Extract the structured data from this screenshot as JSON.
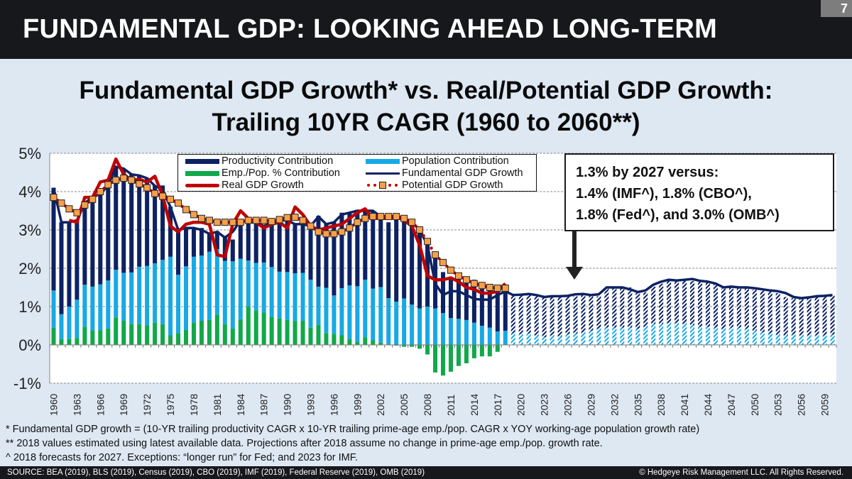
{
  "header": {
    "title": "FUNDAMENTAL GDP: LOOKING AHEAD LONG-TERM",
    "page_number": "7"
  },
  "chart_title": {
    "line1": "Fundamental GDP Growth* vs. Real/Potential GDP Growth:",
    "line2": "Trailing 10YR CAGR (1960 to 2060**)"
  },
  "callout": {
    "line1": "1.3% by 2027 versus:",
    "line2": "1.4% (IMF^), 1.8% (CBO^),",
    "line3": "1.8% (Fed^), and 3.0% (OMB^)"
  },
  "notes": [
    "* Fundamental GDP growth = (10-YR trailing productivity CAGR x 10-YR trailing prime-age emp./pop. CAGR x YOY working-age population growth rate)",
    "** 2018 values estimated using latest available data. Projections after 2018 assume no change in prime-age emp./pop. growth rate.",
    "^ 2018 forecasts for 2027. Exceptions: “longer run” for Fed; and 2023 for IMF."
  ],
  "footer": {
    "source": "SOURCE: BEA (2019), BLS (2019), Census (2019), CBO (2019), IMF (2019), Federal Reserve (2019), OMB (2019)",
    "copyright": "© Hedgeye Risk Management LLC. All Rights Reserved."
  },
  "colors": {
    "productivity": "#0d2263",
    "population": "#17a9e6",
    "emp_pop": "#10a84a",
    "fundamental": "#0d2263",
    "real": "#c00000",
    "potential_marker": "#f7a04a",
    "potential_dot": "#c00000"
  },
  "chart_data": {
    "type": "bar",
    "title": "Fundamental GDP Growth* vs. Real/Potential GDP Growth: Trailing 10YR CAGR (1960 to 2060**)",
    "xlabel": "",
    "ylabel": "",
    "ylim": [
      -1,
      5
    ],
    "yticks": [
      "-1%",
      "0%",
      "1%",
      "2%",
      "3%",
      "4%",
      "5%"
    ],
    "x_start": 1960,
    "x_end": 2060,
    "x_tick_step": 3,
    "x_tick_labels": [
      "1960",
      "1963",
      "1966",
      "1969",
      "1972",
      "1975",
      "1978",
      "1981",
      "1984",
      "1987",
      "1990",
      "1993",
      "1996",
      "1999",
      "2002",
      "2005",
      "2008",
      "2011",
      "2014",
      "2017",
      "2020",
      "2023",
      "2026",
      "2029",
      "2032",
      "2035",
      "2038",
      "2041",
      "2044",
      "2047",
      "2050",
      "2053",
      "2056",
      "2059"
    ],
    "projection_start": 2019,
    "legend": {
      "placement": "top",
      "entries": [
        "Productivity Contribution",
        "Population Contribution",
        "Emp./Pop. % Contribution",
        "Fundamental GDP Growth",
        "Real GDP Growth",
        "Potential GDP Growth"
      ]
    },
    "series": [
      {
        "name": "Emp./Pop. % Contribution",
        "kind": "stacked-bar",
        "values": [
          0.45,
          0.15,
          0.15,
          0.18,
          0.47,
          0.37,
          0.38,
          0.43,
          0.71,
          0.63,
          0.54,
          0.54,
          0.51,
          0.58,
          0.54,
          0.25,
          0.31,
          0.39,
          0.58,
          0.63,
          0.65,
          0.79,
          0.54,
          0.43,
          0.67,
          1.0,
          0.89,
          0.85,
          0.73,
          0.69,
          0.65,
          0.62,
          0.63,
          0.45,
          0.52,
          0.31,
          0.29,
          0.25,
          0.15,
          0.08,
          0.2,
          0.12,
          0.06,
          0.02,
          -0.02,
          -0.05,
          -0.05,
          -0.1,
          -0.25,
          -0.72,
          -0.8,
          -0.7,
          -0.55,
          -0.48,
          -0.35,
          -0.3,
          -0.3,
          -0.18,
          0.02,
          0,
          0,
          0,
          0,
          0,
          0,
          0,
          0,
          0,
          0,
          0,
          0,
          0,
          0,
          0,
          0,
          0,
          0,
          0,
          0,
          0,
          0,
          0,
          0,
          0,
          0,
          0,
          0,
          0,
          0,
          0,
          0,
          0,
          0,
          0,
          0,
          0,
          0,
          0,
          0,
          0,
          0
        ]
      },
      {
        "name": "Population Contribution",
        "kind": "stacked-bar",
        "values": [
          0.97,
          0.65,
          0.85,
          1.0,
          1.1,
          1.15,
          1.2,
          1.25,
          1.25,
          1.25,
          1.35,
          1.5,
          1.55,
          1.55,
          1.68,
          2.05,
          1.52,
          1.66,
          1.72,
          1.7,
          1.78,
          1.71,
          1.65,
          1.75,
          1.58,
          1.2,
          1.25,
          1.3,
          1.3,
          1.22,
          1.25,
          1.25,
          1.25,
          1.25,
          1.0,
          1.18,
          1.0,
          1.23,
          1.4,
          1.45,
          1.5,
          1.35,
          1.45,
          1.2,
          1.13,
          1.21,
          1.05,
          0.95,
          1.0,
          0.95,
          0.83,
          0.7,
          0.68,
          0.65,
          0.58,
          0.5,
          0.45,
          0.35,
          0.35,
          0.3,
          0.28,
          0.3,
          0.25,
          0.2,
          0.25,
          0.22,
          0.28,
          0.3,
          0.32,
          0.37,
          0.42,
          0.45,
          0.45,
          0.45,
          0.45,
          0.42,
          0.47,
          0.55,
          0.55,
          0.57,
          0.57,
          0.55,
          0.52,
          0.47,
          0.47,
          0.45,
          0.42,
          0.45,
          0.45,
          0.42,
          0.37,
          0.33,
          0.3,
          0.27,
          0.25,
          0.27,
          0.25,
          0.25,
          0.25,
          0.25,
          0.27
        ]
      },
      {
        "name": "Productivity Contribution",
        "kind": "stacked-bar",
        "values": [
          2.68,
          2.4,
          2.2,
          2.07,
          2.13,
          2.3,
          2.37,
          2.47,
          2.69,
          2.72,
          2.56,
          2.38,
          2.3,
          2.03,
          1.94,
          1.31,
          1.17,
          1.0,
          0.77,
          0.72,
          0.5,
          0.47,
          0.63,
          0.57,
          1.0,
          1.02,
          1.08,
          0.95,
          1.17,
          1.32,
          1.37,
          1.28,
          1.27,
          1.4,
          1.85,
          1.66,
          1.91,
          1.97,
          1.9,
          1.99,
          1.82,
          2.03,
          1.85,
          1.98,
          2.2,
          2.14,
          2.18,
          2.1,
          1.65,
          1.4,
          1.07,
          1.05,
          1.15,
          1.12,
          1.12,
          1.05,
          1.02,
          1.15,
          1.05,
          0.98,
          1.03,
          1.0,
          1.05,
          1.07,
          1.0,
          1.05,
          1.02,
          0.97,
          0.98,
          0.93,
          0.85,
          1.03,
          1.05,
          1.05,
          1.05,
          0.98,
          0.9,
          0.97,
          1.05,
          1.1,
          1.1,
          1.12,
          1.15,
          1.2,
          1.15,
          1.15,
          1.05,
          1.07,
          1.02,
          1.05,
          1.07,
          1.08,
          1.1,
          1.08,
          1.0,
          0.95,
          0.97,
          0.99,
          1.02,
          1.03,
          1.03
        ]
      },
      {
        "name": "Fundamental GDP Growth",
        "kind": "line",
        "values": [
          4.1,
          3.2,
          3.2,
          3.25,
          3.7,
          3.85,
          3.95,
          4.15,
          4.65,
          4.6,
          4.45,
          4.42,
          4.35,
          4.15,
          4.05,
          3.6,
          3.0,
          3.05,
          3.05,
          3.0,
          2.9,
          2.95,
          2.8,
          2.95,
          3.25,
          3.2,
          3.2,
          3.1,
          3.2,
          3.25,
          3.25,
          3.15,
          3.15,
          3.1,
          3.35,
          3.15,
          3.2,
          3.4,
          3.45,
          3.5,
          3.5,
          3.5,
          3.35,
          3.3,
          3.3,
          3.3,
          3.2,
          3.0,
          2.6,
          1.6,
          1.3,
          1.4,
          1.4,
          1.3,
          1.2,
          1.18,
          1.18,
          1.3,
          1.4,
          1.3,
          1.31,
          1.33,
          1.3,
          1.25,
          1.27,
          1.27,
          1.28,
          1.32,
          1.33,
          1.3,
          1.32,
          1.5,
          1.5,
          1.5,
          1.45,
          1.38,
          1.42,
          1.57,
          1.65,
          1.7,
          1.68,
          1.7,
          1.72,
          1.67,
          1.65,
          1.6,
          1.5,
          1.52,
          1.5,
          1.5,
          1.48,
          1.45,
          1.42,
          1.4,
          1.35,
          1.25,
          1.22,
          1.24,
          1.27,
          1.28,
          1.3
        ]
      },
      {
        "name": "Real GDP Growth",
        "kind": "line",
        "values": [
          null,
          null,
          3.25,
          3.2,
          3.85,
          3.85,
          4.25,
          4.3,
          4.85,
          4.45,
          4.3,
          4.32,
          4.25,
          4.4,
          3.9,
          3.1,
          2.95,
          3.15,
          3.2,
          3.2,
          3.15,
          2.35,
          2.3,
          3.15,
          3.5,
          3.3,
          3.2,
          3.05,
          3.15,
          3.2,
          3.05,
          3.6,
          3.4,
          3.1,
          3.0,
          3.05,
          3.1,
          3.15,
          3.3,
          3.45,
          3.55,
          3.3,
          3.3,
          3.3,
          3.35,
          3.25,
          3.1,
          2.6,
          1.8,
          1.7,
          1.7,
          1.75,
          1.65,
          1.5,
          1.45,
          1.35,
          1.35,
          1.4,
          1.6
        ]
      },
      {
        "name": "Potential GDP Growth",
        "kind": "marker",
        "values": [
          3.85,
          3.7,
          3.55,
          3.45,
          3.65,
          3.8,
          4.0,
          4.18,
          4.3,
          4.35,
          4.3,
          4.2,
          4.1,
          3.95,
          3.88,
          3.8,
          3.7,
          3.53,
          3.4,
          3.3,
          3.25,
          3.2,
          3.2,
          3.2,
          3.2,
          3.25,
          3.25,
          3.25,
          3.22,
          3.27,
          3.32,
          3.33,
          3.25,
          3.1,
          2.95,
          2.9,
          2.9,
          2.95,
          3.05,
          3.2,
          3.3,
          3.35,
          3.35,
          3.35,
          3.35,
          3.3,
          3.2,
          3.0,
          2.7,
          2.35,
          2.15,
          1.95,
          1.8,
          1.7,
          1.6,
          1.55,
          1.5,
          1.48,
          1.48
        ]
      }
    ]
  }
}
